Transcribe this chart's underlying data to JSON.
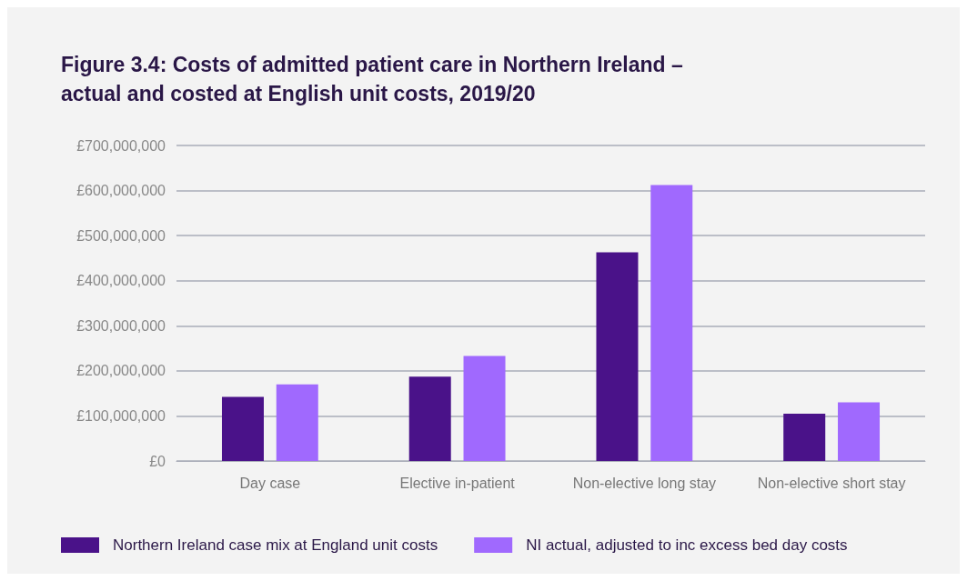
{
  "chart_data": {
    "type": "bar",
    "title": "Figure 3.4: Costs of admitted patient care in Northern Ireland –\nactual and costed at English unit costs, 2019/20",
    "categories": [
      "Day case",
      "Elective in-patient",
      "Non-elective long stay",
      "Non-elective short stay"
    ],
    "series": [
      {
        "name": "Northern Ireland case mix at England unit costs",
        "color": "#4a1289",
        "values": [
          142000000,
          187000000,
          463000000,
          105000000
        ]
      },
      {
        "name": "NI actual, adjusted to inc excess bed day costs",
        "color": "#a069fe",
        "values": [
          170000000,
          233000000,
          612000000,
          130000000
        ]
      }
    ],
    "ylim": [
      0,
      700000000
    ],
    "yticks": [
      {
        "value": 0,
        "label": "£0"
      },
      {
        "value": 100000000,
        "label": "£100,000,000"
      },
      {
        "value": 200000000,
        "label": "£200,000,000"
      },
      {
        "value": 300000000,
        "label": "£300,000,000"
      },
      {
        "value": 400000000,
        "label": "£400,000,000"
      },
      {
        "value": 500000000,
        "label": "£500,000,000"
      },
      {
        "value": 600000000,
        "label": "£600,000,000"
      },
      {
        "value": 700000000,
        "label": "£700,000,000"
      }
    ],
    "grid": "y",
    "legend": "bottom left"
  }
}
